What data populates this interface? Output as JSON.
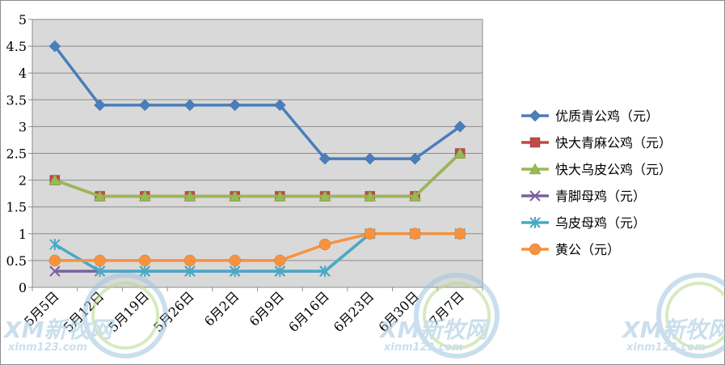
{
  "chart_data": {
    "type": "line",
    "title": "",
    "xlabel": "",
    "ylabel": "",
    "categories": [
      "5月5日",
      "5月12日",
      "5月19日",
      "5月26日",
      "6月2日",
      "6月9日",
      "6月16日",
      "6月23日",
      "6月30日",
      "7月7日"
    ],
    "ylim": [
      0,
      5
    ],
    "yticks": [
      "0",
      "0.5",
      "1",
      "1.5",
      "2",
      "2.5",
      "3",
      "3.5",
      "4",
      "4.5",
      "5"
    ],
    "grid": "horizontal",
    "legend_position": "right",
    "series": [
      {
        "name": "优质青公鸡（元）",
        "values": [
          4.5,
          3.4,
          3.4,
          3.4,
          3.4,
          3.4,
          2.4,
          2.4,
          2.4,
          3.0
        ],
        "color": "#4A7EBB",
        "marker": "diamond"
      },
      {
        "name": "快大青麻公鸡（元）",
        "values": [
          2.0,
          1.7,
          1.7,
          1.7,
          1.7,
          1.7,
          1.7,
          1.7,
          1.7,
          2.5
        ],
        "color": "#BE4B48",
        "marker": "square"
      },
      {
        "name": "快大乌皮公鸡（元）",
        "values": [
          2.0,
          1.7,
          1.7,
          1.7,
          1.7,
          1.7,
          1.7,
          1.7,
          1.7,
          2.5
        ],
        "color": "#98B954",
        "marker": "triangle"
      },
      {
        "name": "青脚母鸡（元）",
        "values": [
          0.3,
          0.3,
          0.3,
          0.3,
          0.3,
          0.3,
          0.3,
          1.0,
          1.0,
          1.0
        ],
        "color": "#7D60A0",
        "marker": "x"
      },
      {
        "name": "乌皮母鸡（元）",
        "values": [
          0.8,
          0.3,
          0.3,
          0.3,
          0.3,
          0.3,
          0.3,
          1.0,
          1.0,
          1.0
        ],
        "color": "#46AAC5",
        "marker": "star"
      },
      {
        "name": "黄公（元）",
        "values": [
          0.5,
          0.5,
          0.5,
          0.5,
          0.5,
          0.5,
          0.8,
          1.0,
          1.0,
          1.0
        ],
        "color": "#F69240",
        "marker": "circle"
      }
    ]
  },
  "watermark": {
    "logo_text": "XM新牧网",
    "site_text": "xinm123.com",
    "colors": [
      "#9fc5e0",
      "#b8d98a"
    ]
  }
}
